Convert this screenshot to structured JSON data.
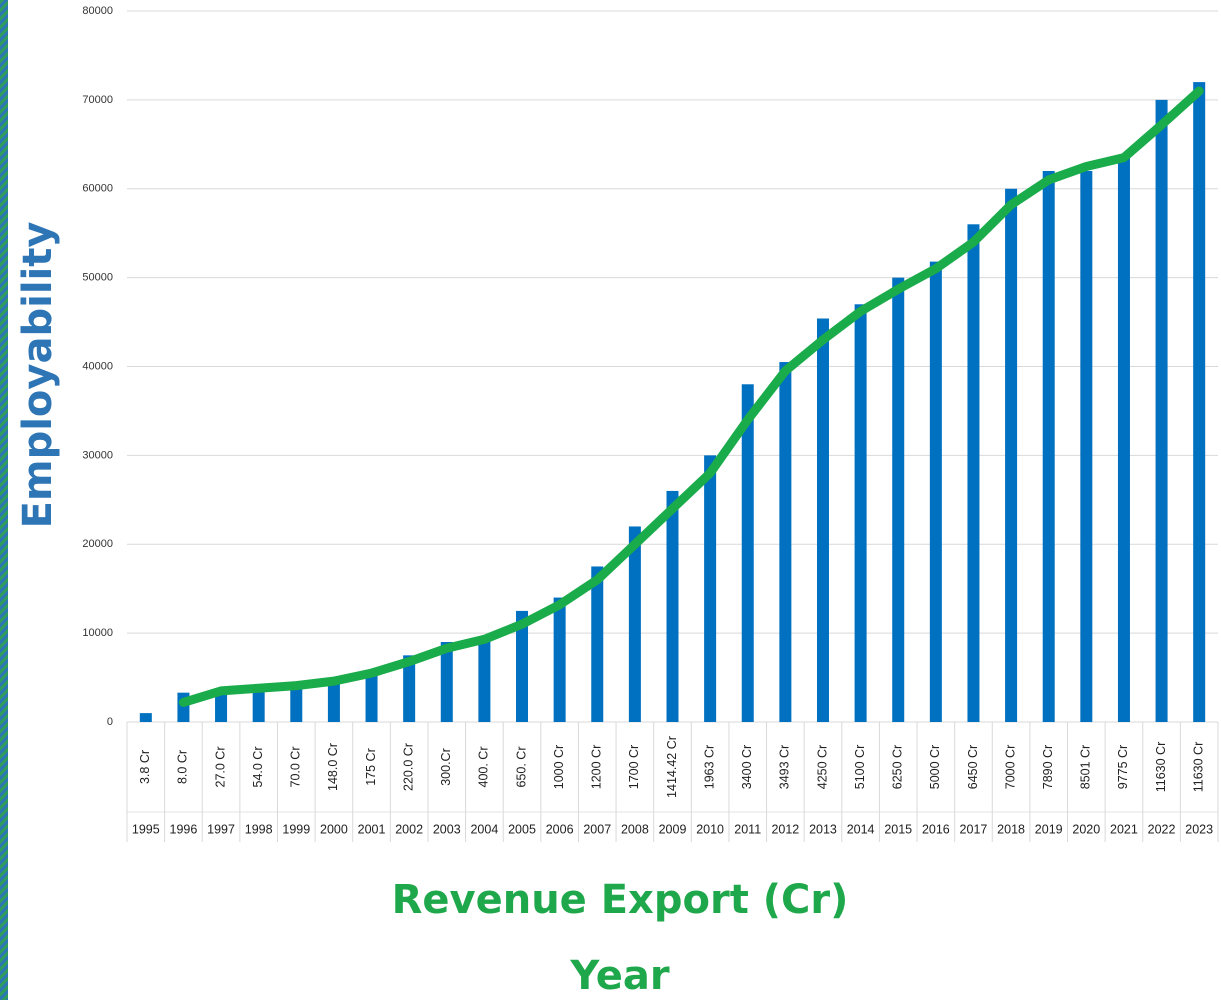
{
  "chart_data": {
    "type": "bar",
    "y_axis_title": "Employability",
    "x_axis_title": "Revenue Export (Cr)",
    "x_axis_subtitle": "Year",
    "categories": [
      "1995",
      "1996",
      "1997",
      "1998",
      "1999",
      "2000",
      "2001",
      "2002",
      "2003",
      "2004",
      "2005",
      "2006",
      "2007",
      "2008",
      "2009",
      "2010",
      "2011",
      "2012",
      "2013",
      "2014",
      "2015",
      "2016",
      "2017",
      "2018",
      "2019",
      "2020",
      "2021",
      "2022",
      "2023"
    ],
    "revenue_labels": [
      "3.8 Cr",
      "8.0 Cr",
      "27.0 Cr",
      "54.0 Cr",
      "70.0 Cr",
      "148.0 Cr",
      "175 Cr",
      "220.0 Cr",
      "300.Cr",
      "400. Cr",
      "650. Cr",
      "1000 Cr",
      "1200 Cr",
      "1700 Cr",
      "1414.42 Cr",
      "1963 Cr",
      "3400 Cr",
      "3493 Cr",
      "4250 Cr",
      "5100 Cr",
      "6250 Cr",
      "5000 Cr",
      "6450 Cr",
      "7000 Cr",
      "7890 Cr",
      "8501 Cr",
      "9775 Cr",
      "11630 Cr",
      "11630 Cr"
    ],
    "series": [
      {
        "type": "bar",
        "color": "#0070c0",
        "values": [
          1000,
          3300,
          3500,
          3800,
          4200,
          4800,
          5800,
          7500,
          9000,
          9500,
          12500,
          14000,
          17500,
          22000,
          26000,
          30000,
          38000,
          40500,
          45400,
          47000,
          50000,
          51800,
          56000,
          60000,
          62000,
          62000,
          63500,
          70000,
          72000
        ]
      },
      {
        "type": "line",
        "color": "#1aab4b",
        "values": [
          null,
          2200,
          3500,
          3800,
          4100,
          4600,
          5500,
          6800,
          8300,
          9300,
          11000,
          13200,
          16000,
          20000,
          24000,
          28000,
          34000,
          39500,
          43000,
          46200,
          48700,
          51000,
          54000,
          58200,
          61000,
          62500,
          63500,
          67200,
          71000
        ]
      }
    ],
    "ylim": [
      0,
      80000
    ],
    "yticks": [
      0,
      10000,
      20000,
      30000,
      40000,
      50000,
      60000,
      70000,
      80000
    ],
    "grid": true
  }
}
